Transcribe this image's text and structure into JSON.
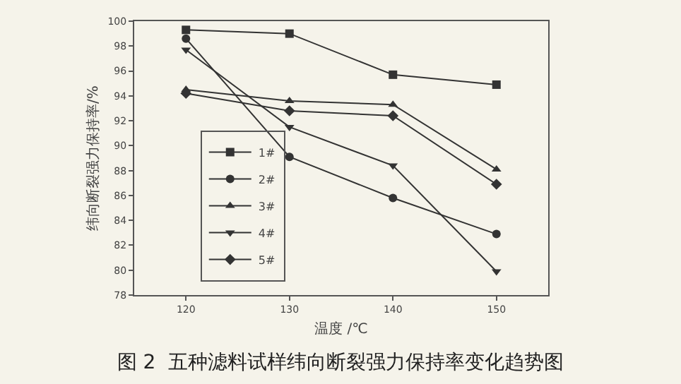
{
  "chart_data": {
    "type": "line",
    "title": "图 2  五种滤料试样纬向断裂强力保持率变化趋势图",
    "xlabel": "温度 /℃",
    "ylabel": "纬向断裂强力保持率/%",
    "x": [
      120,
      130,
      140,
      150
    ],
    "series": [
      {
        "name": "1#",
        "color": "#333333",
        "marker": "square",
        "values": [
          99.3,
          99.0,
          95.7,
          94.9
        ]
      },
      {
        "name": "2#",
        "color": "#333333",
        "marker": "circle",
        "values": [
          98.6,
          89.1,
          85.8,
          82.9
        ]
      },
      {
        "name": "3#",
        "color": "#333333",
        "marker": "triangle",
        "values": [
          94.5,
          93.6,
          93.3,
          88.1
        ]
      },
      {
        "name": "4#",
        "color": "#333333",
        "marker": "triangle-down",
        "values": [
          97.7,
          91.5,
          88.4,
          79.9
        ]
      },
      {
        "name": "5#",
        "color": "#333333",
        "marker": "diamond",
        "values": [
          94.2,
          92.8,
          92.4,
          86.9
        ]
      }
    ],
    "xlim": [
      115,
      155
    ],
    "xticks": [
      120,
      130,
      140,
      150
    ],
    "ylim": [
      78,
      100
    ],
    "yticks": [
      78,
      80,
      82,
      84,
      86,
      88,
      90,
      92,
      94,
      96,
      98,
      100
    ],
    "legend": "bottom left",
    "grid": false,
    "line_style": "solid"
  }
}
